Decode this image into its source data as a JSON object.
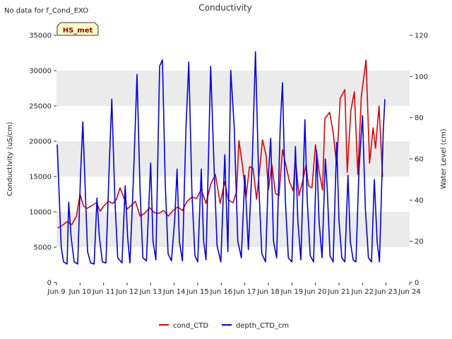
{
  "top_note": "No data for f_Cond_EXO",
  "badge": "HS_met",
  "chart_data": {
    "type": "line",
    "title": "Conductivity",
    "xlabel": "",
    "ylabel_left": "Conductivity (uS/cm)",
    "ylabel_right": "Water Level (cm)",
    "x_range": [
      9,
      24
    ],
    "x_ticks": [
      {
        "x": 9,
        "label": "Jun 9"
      },
      {
        "x": 10,
        "label": "Jun 10"
      },
      {
        "x": 11,
        "label": "Jun 11"
      },
      {
        "x": 12,
        "label": "Jun 12"
      },
      {
        "x": 13,
        "label": "Jun 13"
      },
      {
        "x": 14,
        "label": "Jun 14"
      },
      {
        "x": 15,
        "label": "Jun 15"
      },
      {
        "x": 16,
        "label": "Jun 16"
      },
      {
        "x": 17,
        "label": "Jun 17"
      },
      {
        "x": 18,
        "label": "Jun 18"
      },
      {
        "x": 19,
        "label": "Jun 19"
      },
      {
        "x": 20,
        "label": "Jun 20"
      },
      {
        "x": 21,
        "label": "Jun 21"
      },
      {
        "x": 22,
        "label": "Jun 22"
      },
      {
        "x": 23,
        "label": "Jun 23"
      },
      {
        "x": 24,
        "label": "Jun 24"
      }
    ],
    "y_left_range": [
      0,
      35000
    ],
    "y_left_ticks": [
      "0",
      "5000",
      "10000",
      "15000",
      "20000",
      "25000",
      "30000",
      "35000"
    ],
    "y_right_range": [
      0,
      120
    ],
    "y_right_ticks": [
      "0",
      "20",
      "40",
      "60",
      "80",
      "100",
      "120"
    ],
    "band_color": "#ebebeb",
    "legend_position": "bottom-center",
    "series": [
      {
        "name": "cond_CTD",
        "axis": "left",
        "color": "#dd0000",
        "points": [
          [
            9.05,
            7700
          ],
          [
            9.25,
            8100
          ],
          [
            9.45,
            8600
          ],
          [
            9.65,
            8200
          ],
          [
            9.85,
            9400
          ],
          [
            10.0,
            12500
          ],
          [
            10.15,
            10800
          ],
          [
            10.3,
            10500
          ],
          [
            10.5,
            10900
          ],
          [
            10.7,
            11300
          ],
          [
            10.85,
            10100
          ],
          [
            11.0,
            10800
          ],
          [
            11.2,
            11500
          ],
          [
            11.4,
            11200
          ],
          [
            11.55,
            11800
          ],
          [
            11.7,
            13400
          ],
          [
            11.85,
            12100
          ],
          [
            12.0,
            10400
          ],
          [
            12.2,
            11000
          ],
          [
            12.35,
            11500
          ],
          [
            12.55,
            9400
          ],
          [
            12.75,
            9800
          ],
          [
            12.95,
            10600
          ],
          [
            13.15,
            9900
          ],
          [
            13.35,
            9800
          ],
          [
            13.55,
            10200
          ],
          [
            13.75,
            9400
          ],
          [
            13.95,
            10200
          ],
          [
            14.15,
            10700
          ],
          [
            14.35,
            10200
          ],
          [
            14.55,
            11500
          ],
          [
            14.75,
            12100
          ],
          [
            14.95,
            11900
          ],
          [
            15.15,
            13200
          ],
          [
            15.35,
            11200
          ],
          [
            15.55,
            13900
          ],
          [
            15.75,
            15300
          ],
          [
            15.95,
            11200
          ],
          [
            16.15,
            14300
          ],
          [
            16.3,
            11700
          ],
          [
            16.5,
            11300
          ],
          [
            16.65,
            12900
          ],
          [
            16.75,
            20100
          ],
          [
            16.9,
            16600
          ],
          [
            17.05,
            12000
          ],
          [
            17.2,
            16400
          ],
          [
            17.35,
            16200
          ],
          [
            17.5,
            11800
          ],
          [
            17.65,
            16700
          ],
          [
            17.75,
            20200
          ],
          [
            17.9,
            18000
          ],
          [
            18.0,
            13100
          ],
          [
            18.15,
            16700
          ],
          [
            18.3,
            12600
          ],
          [
            18.45,
            12300
          ],
          [
            18.6,
            18800
          ],
          [
            18.75,
            16500
          ],
          [
            18.9,
            14200
          ],
          [
            19.05,
            13000
          ],
          [
            19.15,
            17600
          ],
          [
            19.3,
            12300
          ],
          [
            19.45,
            14200
          ],
          [
            19.6,
            16700
          ],
          [
            19.7,
            13700
          ],
          [
            19.85,
            13400
          ],
          [
            20.0,
            19500
          ],
          [
            20.15,
            15800
          ],
          [
            20.3,
            13100
          ],
          [
            20.4,
            23200
          ],
          [
            20.6,
            24100
          ],
          [
            20.75,
            21300
          ],
          [
            20.9,
            16500
          ],
          [
            21.05,
            26100
          ],
          [
            21.25,
            27300
          ],
          [
            21.35,
            15600
          ],
          [
            21.5,
            24300
          ],
          [
            21.65,
            27000
          ],
          [
            21.8,
            15300
          ],
          [
            21.95,
            26500
          ],
          [
            22.15,
            31500
          ],
          [
            22.3,
            16900
          ],
          [
            22.45,
            21900
          ],
          [
            22.55,
            19000
          ],
          [
            22.7,
            25000
          ],
          [
            22.85,
            15000
          ]
        ]
      },
      {
        "name": "depth_CTD_cm",
        "axis": "right",
        "color": "#0000dd",
        "points": [
          [
            9.03,
            67
          ],
          [
            9.2,
            17
          ],
          [
            9.3,
            10
          ],
          [
            9.45,
            9
          ],
          [
            9.52,
            39
          ],
          [
            9.62,
            22
          ],
          [
            9.75,
            10
          ],
          [
            9.9,
            9
          ],
          [
            10.02,
            52
          ],
          [
            10.12,
            78
          ],
          [
            10.22,
            45
          ],
          [
            10.32,
            15
          ],
          [
            10.45,
            9.5
          ],
          [
            10.6,
            9
          ],
          [
            10.72,
            41
          ],
          [
            10.82,
            22
          ],
          [
            10.95,
            10
          ],
          [
            11.1,
            9.5
          ],
          [
            11.25,
            60
          ],
          [
            11.35,
            89
          ],
          [
            11.48,
            40
          ],
          [
            11.6,
            12
          ],
          [
            11.78,
            9.5
          ],
          [
            11.92,
            47
          ],
          [
            12.02,
            22
          ],
          [
            12.12,
            9.5
          ],
          [
            12.28,
            54
          ],
          [
            12.42,
            101
          ],
          [
            12.55,
            45
          ],
          [
            12.67,
            12
          ],
          [
            12.82,
            10.5
          ],
          [
            13.0,
            58
          ],
          [
            13.1,
            20
          ],
          [
            13.22,
            11
          ],
          [
            13.38,
            105
          ],
          [
            13.5,
            108
          ],
          [
            13.62,
            48
          ],
          [
            13.74,
            14
          ],
          [
            13.88,
            10.5
          ],
          [
            14.02,
            30
          ],
          [
            14.12,
            55
          ],
          [
            14.22,
            20
          ],
          [
            14.35,
            10.5
          ],
          [
            14.5,
            75
          ],
          [
            14.62,
            107
          ],
          [
            14.75,
            44
          ],
          [
            14.88,
            13
          ],
          [
            15.0,
            10
          ],
          [
            15.15,
            55
          ],
          [
            15.25,
            20
          ],
          [
            15.35,
            11
          ],
          [
            15.55,
            105
          ],
          [
            15.68,
            60
          ],
          [
            15.82,
            18
          ],
          [
            15.98,
            10
          ],
          [
            16.15,
            62
          ],
          [
            16.28,
            15
          ],
          [
            16.4,
            103
          ],
          [
            16.55,
            75
          ],
          [
            16.7,
            20
          ],
          [
            16.85,
            12
          ],
          [
            17.0,
            52
          ],
          [
            17.15,
            16
          ],
          [
            17.32,
            60
          ],
          [
            17.45,
            112
          ],
          [
            17.6,
            45
          ],
          [
            17.72,
            14
          ],
          [
            17.88,
            10
          ],
          [
            18.0,
            52
          ],
          [
            18.1,
            70
          ],
          [
            18.22,
            20
          ],
          [
            18.35,
            12
          ],
          [
            18.5,
            75
          ],
          [
            18.6,
            97
          ],
          [
            18.72,
            40
          ],
          [
            18.85,
            12
          ],
          [
            19.0,
            10
          ],
          [
            19.15,
            66
          ],
          [
            19.25,
            30
          ],
          [
            19.38,
            11
          ],
          [
            19.55,
            79
          ],
          [
            19.65,
            40
          ],
          [
            19.78,
            13
          ],
          [
            19.92,
            10
          ],
          [
            20.05,
            64
          ],
          [
            20.15,
            30
          ],
          [
            20.28,
            12
          ],
          [
            20.42,
            60
          ],
          [
            20.5,
            46
          ],
          [
            20.62,
            13
          ],
          [
            20.75,
            10
          ],
          [
            20.9,
            68
          ],
          [
            21.0,
            30
          ],
          [
            21.12,
            12
          ],
          [
            21.25,
            10
          ],
          [
            21.38,
            52
          ],
          [
            21.48,
            20
          ],
          [
            21.6,
            11
          ],
          [
            21.72,
            10
          ],
          [
            21.85,
            55
          ],
          [
            22.0,
            81
          ],
          [
            22.12,
            36
          ],
          [
            22.25,
            12
          ],
          [
            22.38,
            10
          ],
          [
            22.5,
            50
          ],
          [
            22.62,
            20
          ],
          [
            22.72,
            10
          ],
          [
            22.88,
            74
          ],
          [
            22.95,
            89
          ]
        ]
      }
    ]
  }
}
